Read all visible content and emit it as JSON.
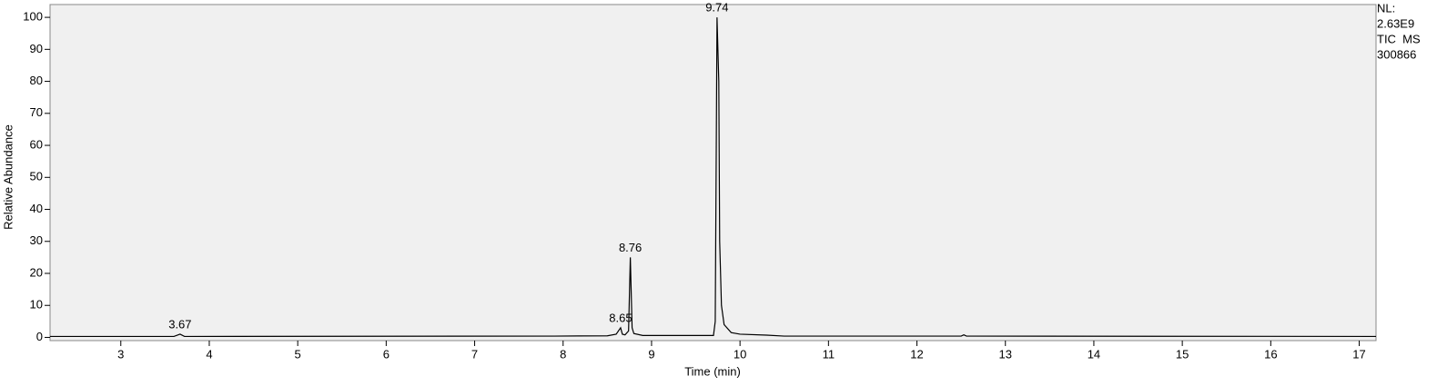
{
  "chart_data": {
    "type": "line",
    "x_label": "Time (min)",
    "y_label": "Relative Abundance",
    "info": [
      "NL:",
      "2.63E9",
      "TIC  MS",
      "300866"
    ],
    "series": [
      {
        "color": "#000000",
        "x": [
          2.2,
          3.6,
          3.67,
          3.72,
          7.9,
          8.5,
          8.6,
          8.65,
          8.67,
          8.7,
          8.74,
          8.76,
          8.78,
          8.8,
          8.9,
          9.7,
          9.72,
          9.74,
          9.76,
          9.77,
          9.79,
          9.82,
          9.9,
          10.0,
          10.3,
          10.5,
          12.5,
          12.53,
          12.56,
          17.19
        ],
        "values": [
          0.3,
          0.3,
          1.0,
          0.3,
          0.4,
          0.5,
          1.0,
          3.0,
          1.0,
          0.8,
          2,
          25,
          3,
          1.2,
          0.6,
          0.6,
          5,
          100,
          80,
          30,
          10,
          4,
          1.5,
          1.0,
          0.7,
          0.4,
          0.4,
          0.8,
          0.4,
          0.3
        ]
      }
    ],
    "peak_labels": [
      3.67,
      8.65,
      8.76,
      9.74
    ],
    "xlim": [
      2.2,
      17.19
    ],
    "ylim": [
      -1,
      104
    ],
    "xticks": [
      3,
      4,
      5,
      6,
      7,
      8,
      9,
      10,
      11,
      12,
      13,
      14,
      15,
      16,
      17
    ],
    "yticks": [
      0,
      10,
      20,
      30,
      40,
      50,
      60,
      70,
      80,
      90,
      100
    ]
  }
}
